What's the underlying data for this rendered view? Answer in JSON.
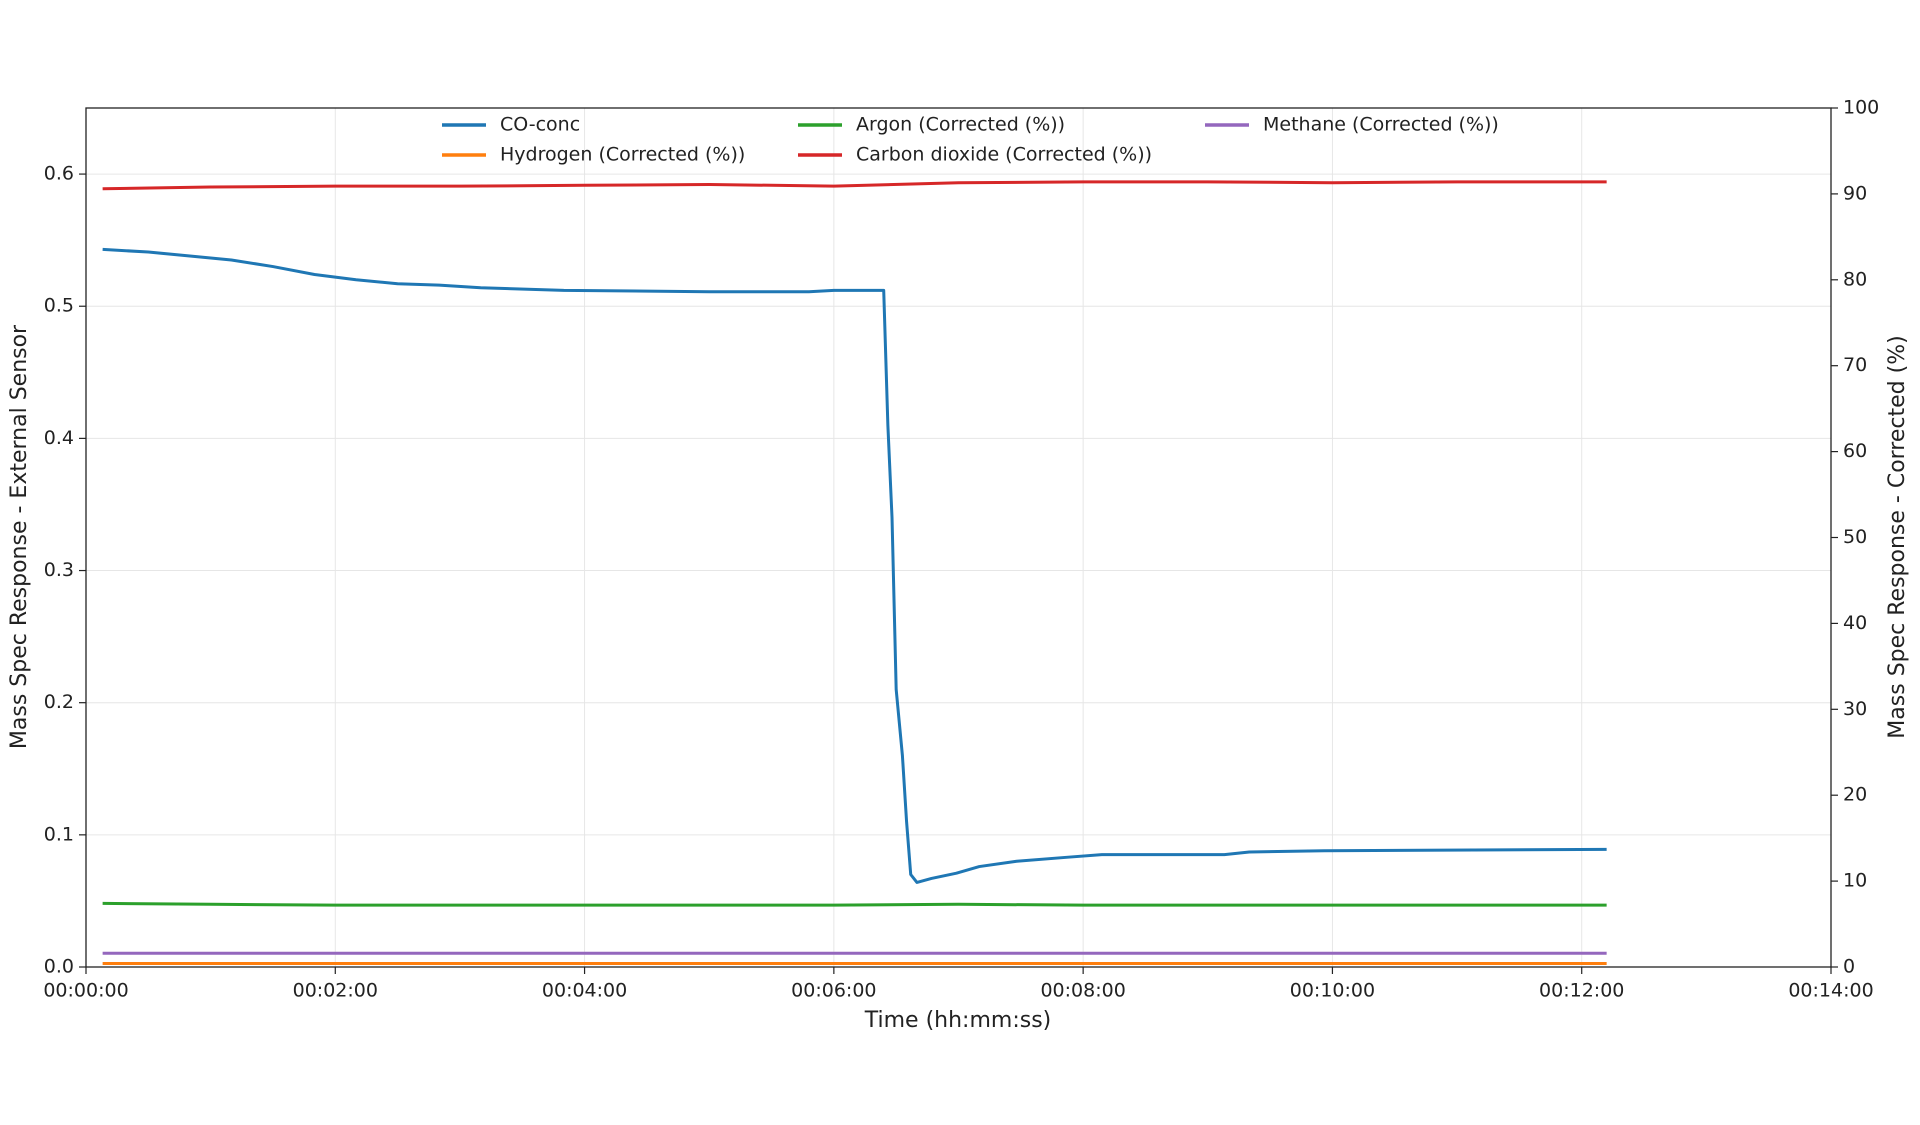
{
  "chart_data": {
    "type": "line",
    "xlabel": "Time (hh:mm:ss)",
    "ylabel": "Mass Spec Response - External Sensor",
    "y2label": "Mass Spec Response - Corrected (%)",
    "xlim": [
      0,
      840
    ],
    "xticks": [
      {
        "value": 0,
        "label": "00:00:00"
      },
      {
        "value": 120,
        "label": "00:02:00"
      },
      {
        "value": 240,
        "label": "00:04:00"
      },
      {
        "value": 360,
        "label": "00:06:00"
      },
      {
        "value": 480,
        "label": "00:08:00"
      },
      {
        "value": 600,
        "label": "00:10:00"
      },
      {
        "value": 720,
        "label": "00:12:00"
      },
      {
        "value": 840,
        "label": "00:14:00"
      }
    ],
    "ylim": [
      0,
      0.65
    ],
    "yticks": [
      {
        "value": 0,
        "label": "0.0"
      },
      0.1,
      0.2,
      0.3,
      0.4,
      0.5,
      0.6
    ],
    "y2lim": [
      0,
      100
    ],
    "y2ticks": [
      0,
      10,
      20,
      30,
      40,
      50,
      60,
      70,
      80,
      90,
      100
    ],
    "grid": true,
    "legend": "upper center",
    "series": [
      {
        "name": "CO-conc",
        "color": "#1f77b4",
        "x": [
          8,
          30,
          50,
          70,
          90,
          110,
          130,
          150,
          170,
          190,
          230,
          300,
          348,
          360,
          384,
          386,
          388,
          390,
          393,
          395,
          397,
          400,
          407,
          419,
          430,
          448,
          472,
          489,
          548,
          560,
          596,
          732
        ],
        "values": [
          0.543,
          0.541,
          0.538,
          0.535,
          0.53,
          0.524,
          0.52,
          0.517,
          0.516,
          0.514,
          0.512,
          0.511,
          0.511,
          0.512,
          0.512,
          0.41,
          0.34,
          0.21,
          0.16,
          0.11,
          0.07,
          0.064,
          0.067,
          0.071,
          0.076,
          0.08,
          0.083,
          0.085,
          0.085,
          0.087,
          0.088,
          0.089
        ]
      },
      {
        "name": "Hydrogen (Corrected (%))",
        "color": "#ff7f0e",
        "axis": "y2",
        "x": [
          8,
          60,
          120,
          180,
          240,
          300,
          360,
          420,
          480,
          540,
          600,
          660,
          732
        ],
        "values": [
          0.4,
          0.4,
          0.4,
          0.4,
          0.4,
          0.4,
          0.4,
          0.4,
          0.4,
          0.4,
          0.4,
          0.4,
          0.4
        ]
      },
      {
        "name": "Argon (Corrected (%))",
        "color": "#2ca02c",
        "axis": "y2",
        "x": [
          8,
          60,
          120,
          180,
          240,
          300,
          360,
          420,
          480,
          540,
          600,
          660,
          732
        ],
        "values": [
          7.4,
          7.3,
          7.2,
          7.2,
          7.2,
          7.2,
          7.2,
          7.3,
          7.2,
          7.2,
          7.2,
          7.2,
          7.2
        ]
      },
      {
        "name": "Carbon dioxide (Corrected (%))",
        "color": "#d62728",
        "axis": "y2",
        "x": [
          8,
          60,
          120,
          180,
          240,
          300,
          360,
          420,
          480,
          540,
          600,
          660,
          732
        ],
        "values": [
          90.6,
          90.8,
          90.9,
          90.9,
          91.0,
          91.1,
          90.9,
          91.3,
          91.4,
          91.4,
          91.3,
          91.4,
          91.4
        ]
      },
      {
        "name": "Methane (Corrected (%))",
        "color": "#9467bd",
        "axis": "y2",
        "x": [
          8,
          60,
          120,
          180,
          240,
          300,
          360,
          420,
          480,
          540,
          600,
          660,
          732
        ],
        "values": [
          1.6,
          1.6,
          1.6,
          1.6,
          1.6,
          1.6,
          1.6,
          1.6,
          1.6,
          1.6,
          1.6,
          1.6,
          1.6
        ]
      }
    ]
  }
}
